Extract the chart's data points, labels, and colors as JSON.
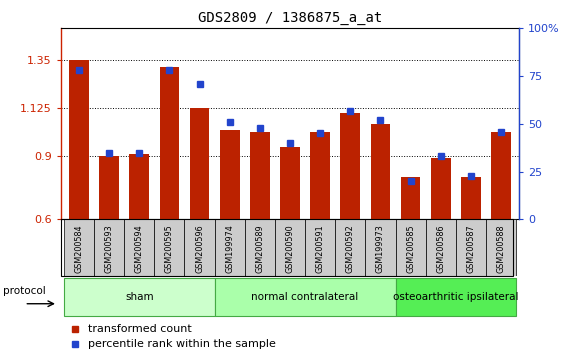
{
  "title": "GDS2809 / 1386875_a_at",
  "samples": [
    "GSM200584",
    "GSM200593",
    "GSM200594",
    "GSM200595",
    "GSM200596",
    "GSM199974",
    "GSM200589",
    "GSM200590",
    "GSM200591",
    "GSM200592",
    "GSM199973",
    "GSM200585",
    "GSM200586",
    "GSM200587",
    "GSM200588"
  ],
  "bar_values": [
    1.35,
    0.9,
    0.91,
    1.32,
    1.125,
    1.02,
    1.01,
    0.94,
    1.01,
    1.1,
    1.05,
    0.8,
    0.89,
    0.8,
    1.01
  ],
  "dot_values": [
    78,
    35,
    35,
    78,
    71,
    51,
    48,
    40,
    45,
    57,
    52,
    20,
    33,
    23,
    46
  ],
  "bar_color": "#bb2200",
  "dot_color": "#2244cc",
  "ylim_left": [
    0.6,
    1.5
  ],
  "ylim_right": [
    0,
    100
  ],
  "yticks_left": [
    0.6,
    0.9,
    1.125,
    1.35
  ],
  "ytick_labels_left": [
    "0.6",
    "0.9",
    "1.125",
    "1.35"
  ],
  "yticks_right": [
    0,
    25,
    50,
    75,
    100
  ],
  "ytick_labels_right": [
    "0",
    "25",
    "50",
    "75",
    "100%"
  ],
  "groups": [
    {
      "label": "sham",
      "start": 0,
      "end": 5,
      "color": "#ccffcc"
    },
    {
      "label": "normal contralateral",
      "start": 5,
      "end": 11,
      "color": "#aaffaa"
    },
    {
      "label": "osteoarthritic ipsilateral",
      "start": 11,
      "end": 15,
      "color": "#55ee55"
    }
  ],
  "legend1": "transformed count",
  "legend2": "percentile rank within the sample",
  "protocol_label": "protocol",
  "tick_color_left": "#cc2200",
  "tick_color_right": "#2244cc",
  "label_box_color": "#cccccc",
  "group_border_color": "#44aa44"
}
